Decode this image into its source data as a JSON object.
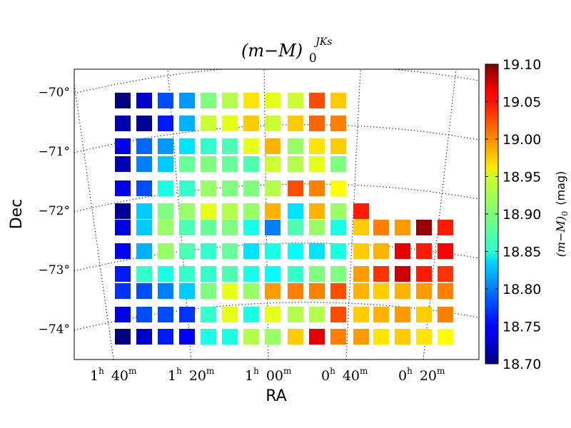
{
  "chart_data": {
    "type": "heatmap",
    "title": "(m−M)0JKs",
    "title_parts": {
      "main": "(m−M)",
      "sub": "0",
      "sup": "JKs"
    },
    "xlabel": "RA",
    "ylabel": "Dec",
    "ra_ticks": [
      {
        "h": "1",
        "m": "40"
      },
      {
        "h": "1",
        "m": "20"
      },
      {
        "h": "1",
        "m": "00"
      },
      {
        "h": "0",
        "m": "40"
      },
      {
        "h": "0",
        "m": "20"
      }
    ],
    "dec_ticks": [
      "−70°",
      "−71°",
      "−72°",
      "−73°",
      "−74°"
    ],
    "colorbar": {
      "label": "(m−M)0 (mag)",
      "label_parts": {
        "main": "(m−M)",
        "sub": "0",
        "unit": "(mag)"
      },
      "min": 18.7,
      "max": 19.1,
      "ticks": [
        "18.70",
        "18.75",
        "18.80",
        "18.85",
        "18.90",
        "18.95",
        "19.00",
        "19.05",
        "19.10"
      ]
    },
    "grid": "dotted RA/Dec graticule",
    "tile_rows": [
      [
        18.7,
        18.73,
        18.78,
        18.81,
        18.9,
        18.92,
        18.96,
        18.94,
        18.93,
        19.02,
        18.97
      ],
      [
        18.72,
        18.71,
        18.76,
        18.82,
        18.93,
        18.94,
        18.97,
        18.93,
        18.97,
        19.01,
        19.0
      ],
      [
        18.74,
        18.79,
        18.81,
        18.84,
        18.87,
        18.88,
        18.94,
        18.98,
        18.91,
        18.96,
        18.97
      ],
      [
        18.72,
        18.8,
        18.83,
        18.89,
        18.9,
        18.89,
        18.88,
        18.93,
        18.92,
        18.94,
        18.9
      ],
      [
        18.74,
        18.78,
        18.86,
        18.87,
        18.91,
        18.9,
        18.9,
        18.92,
        19.02,
        19.0,
        18.95
      ],
      [
        18.71,
        18.83,
        18.9,
        18.91,
        18.94,
        18.92,
        18.91,
        18.98,
        18.84,
        18.98,
        18.91,
        19.04
      ],
      [
        18.74,
        18.83,
        18.91,
        18.88,
        18.89,
        18.9,
        18.86,
        18.8,
        18.88,
        18.91,
        18.86,
        18.97,
        19.0,
        18.99,
        19.09,
        19.04
      ],
      [
        18.75,
        18.82,
        18.91,
        18.88,
        18.87,
        18.89,
        18.84,
        18.86,
        18.85,
        18.84,
        18.86,
        18.97,
        18.98,
        19.06,
        19.04,
        19.05
      ],
      [
        18.76,
        18.87,
        18.86,
        18.87,
        18.87,
        18.88,
        18.86,
        18.85,
        18.87,
        18.9,
        18.9,
        18.99,
        19.03,
        19.07,
        19.04,
        19.03
      ],
      [
        18.77,
        18.78,
        18.8,
        18.83,
        18.9,
        18.94,
        18.91,
        18.99,
        19.0,
        19.0,
        19.02,
        18.98,
        18.97,
        18.98,
        18.99,
        19.0
      ],
      [
        18.74,
        18.78,
        18.78,
        18.77,
        18.87,
        18.94,
        18.86,
        18.94,
        18.92,
        18.92,
        19.02,
        18.97,
        18.98,
        18.99,
        18.97,
        19.0
      ],
      [
        18.7,
        18.73,
        18.76,
        18.75,
        18.86,
        18.86,
        18.92,
        18.91,
        18.97,
        19.06,
        19.0,
        18.99,
        18.96,
        18.97,
        18.96,
        18.95
      ]
    ]
  }
}
